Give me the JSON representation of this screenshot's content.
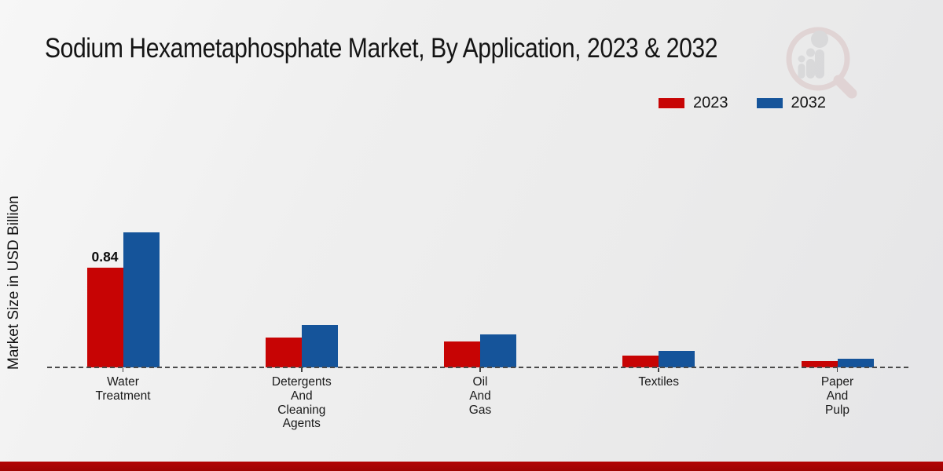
{
  "header": {
    "title": "Sodium Hexametaphosphate Market, By Application, 2023 & 2032"
  },
  "legend": {
    "items": [
      {
        "label": "2023",
        "color": "#c70404"
      },
      {
        "label": "2032",
        "color": "#15549a"
      }
    ]
  },
  "colors": {
    "footer_bar": "#b20404",
    "baseline": "#4a4a4a",
    "logo_ring": "#d8bfbf",
    "logo_gray": "#c9c9cc"
  },
  "chart_data": {
    "type": "bar",
    "title": "Sodium Hexametaphosphate Market, By Application, 2023 & 2032",
    "xlabel": "",
    "ylabel": "Market Size in USD Billion",
    "categories": [
      "Water Treatment",
      "Detergents And Cleaning Agents",
      "Oil And Gas",
      "Textiles",
      "Paper And Pulp"
    ],
    "category_label_lines": [
      [
        "Water",
        "Treatment"
      ],
      [
        "Detergents",
        "And",
        "Cleaning",
        "Agents"
      ],
      [
        "Oil",
        "And",
        "Gas"
      ],
      [
        "Textiles"
      ],
      [
        "Paper",
        "And",
        "Pulp"
      ]
    ],
    "series": [
      {
        "name": "2023",
        "color": "#c70404",
        "values": [
          0.84,
          0.25,
          0.22,
          0.1,
          0.05
        ],
        "value_labels": [
          "0.84",
          "",
          "",
          "",
          ""
        ]
      },
      {
        "name": "2032",
        "color": "#15549a",
        "values": [
          1.14,
          0.36,
          0.28,
          0.14,
          0.07
        ],
        "value_labels": [
          "",
          "",
          "",
          "",
          ""
        ]
      }
    ],
    "ylim": [
      0,
      1.25
    ],
    "grid": false,
    "legend_position": "top-right",
    "baseline_style": "dashed",
    "annotations": [
      {
        "category": "Water Treatment",
        "series": "2023",
        "text": "0.84"
      }
    ]
  },
  "logo": {
    "icon": "magnifier-bar-chart-logo"
  }
}
